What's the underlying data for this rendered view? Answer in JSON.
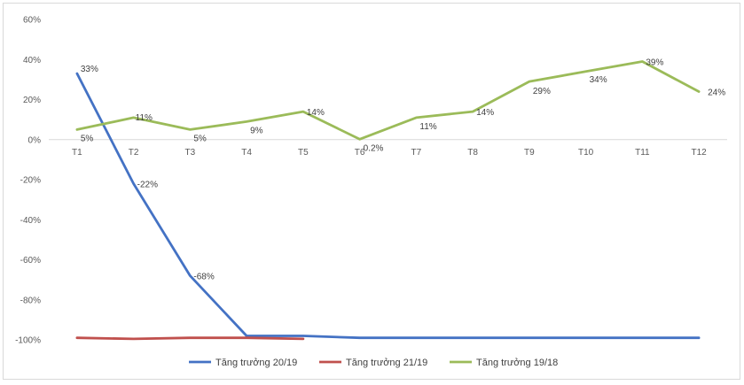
{
  "chart_data": {
    "type": "line",
    "categories": [
      "T1",
      "T2",
      "T3",
      "T4",
      "T5",
      "T6",
      "T7",
      "T8",
      "T9",
      "T10",
      "T11",
      "T12"
    ],
    "ylim": [
      -100,
      60
    ],
    "ytick_values": [
      60,
      40,
      20,
      0,
      -20,
      -40,
      -60,
      -80,
      -100
    ],
    "ytick_labels": [
      "60%",
      "40%",
      "20%",
      "0%",
      "-20%",
      "-40%",
      "-60%",
      "-80%",
      "-100%"
    ],
    "grid": false,
    "legend_position": "bottom",
    "series": [
      {
        "name": "Tăng trưởng 20/19",
        "color": "#4472c4",
        "values": [
          33,
          -22,
          -68,
          -98,
          -98,
          -99,
          -99,
          -99,
          -99,
          -99,
          -99,
          -99
        ],
        "labels": [
          "33%",
          "-22%",
          "-68%",
          null,
          null,
          null,
          null,
          null,
          null,
          null,
          null,
          null
        ]
      },
      {
        "name": "Tăng trưởng 21/19",
        "color": "#c0504d",
        "values": [
          -99,
          -99.5,
          -99,
          -99,
          -99.5,
          null,
          null,
          null,
          null,
          null,
          null,
          null
        ],
        "labels": [
          null,
          null,
          null,
          null,
          null,
          null,
          null,
          null,
          null,
          null,
          null,
          null
        ]
      },
      {
        "name": "Tăng trưởng 19/18",
        "color": "#9bbb59",
        "values": [
          5,
          11,
          5,
          9,
          14,
          0.2,
          11,
          14,
          29,
          34,
          39,
          24
        ],
        "labels": [
          "5%",
          "11%",
          "5%",
          "9%",
          "14%",
          "0.2%",
          "11%",
          "14%",
          "29%",
          "34%",
          "39%",
          "24%"
        ]
      }
    ]
  }
}
